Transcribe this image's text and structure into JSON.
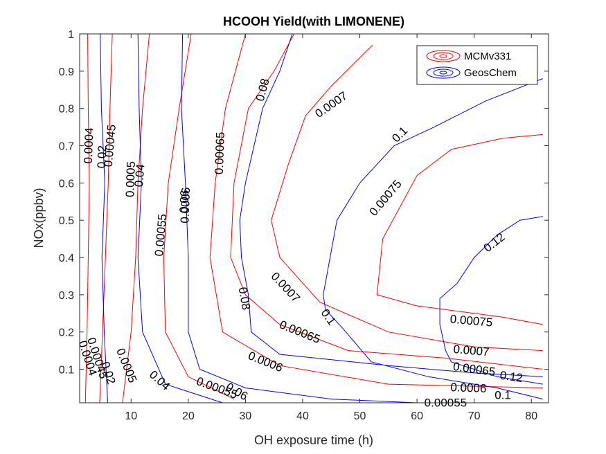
{
  "chart_data": {
    "type": "contour",
    "title": "HCOOH Yield(with LIMONENE)",
    "xlabel": "OH exposure time (h)",
    "ylabel": "NOx(ppbv)",
    "xlim": [
      1,
      83
    ],
    "ylim": [
      0.01,
      1.0
    ],
    "xticks": [
      10,
      20,
      30,
      40,
      50,
      60,
      70,
      80
    ],
    "yticks": [
      0.1,
      0.2,
      0.3,
      0.4,
      0.5,
      0.6,
      0.7,
      0.8,
      0.9,
      1
    ],
    "ytick_labels": [
      "0.1",
      "0.2",
      "0.3",
      "0.4",
      "0.5",
      "0.6",
      "0.7",
      "0.8",
      "0.9",
      "1"
    ],
    "xtick_labels": [
      "10",
      "20",
      "30",
      "40",
      "50",
      "60",
      "70",
      "80"
    ],
    "grid": false,
    "legend": {
      "location": "top-right",
      "entries": [
        {
          "name": "MCMv331",
          "color": "#ff0000"
        },
        {
          "name": "GeosChem",
          "color": "#0000ff"
        }
      ]
    },
    "series": [
      {
        "name": "MCMv331",
        "color": "#ff0000",
        "contours": [
          {
            "level": "0.0004",
            "points": [
              [
                2.4,
                1.0
              ],
              [
                2.5,
                0.8
              ],
              [
                2.7,
                0.6
              ],
              [
                2.5,
                0.4
              ],
              [
                2.3,
                0.2
              ],
              [
                2.0,
                0.01
              ]
            ]
          },
          {
            "level": "0.00045",
            "points": [
              [
                6.7,
                1.0
              ],
              [
                6.3,
                0.8
              ],
              [
                6.0,
                0.6
              ],
              [
                5.5,
                0.4
              ],
              [
                5.0,
                0.2
              ],
              [
                4.5,
                0.01
              ]
            ]
          },
          {
            "level": "0.0005",
            "points": [
              [
                13.2,
                1.0
              ],
              [
                12.0,
                0.8
              ],
              [
                11.2,
                0.6
              ],
              [
                10.8,
                0.4
              ],
              [
                10.0,
                0.2
              ],
              [
                8.5,
                0.01
              ]
            ]
          },
          {
            "level": "0.00055",
            "points": [
              [
                20.5,
                1.0
              ],
              [
                18.4,
                0.8
              ],
              [
                16.5,
                0.6
              ],
              [
                15.7,
                0.4
              ],
              [
                16.0,
                0.2
              ],
              [
                20.0,
                0.08
              ],
              [
                28.0,
                0.02
              ]
            ]
          },
          {
            "level": "0.0006",
            "points": [
              [
                30.0,
                1.0
              ],
              [
                26.5,
                0.8
              ],
              [
                24.7,
                0.6
              ],
              [
                23.8,
                0.4
              ],
              [
                26.0,
                0.2
              ],
              [
                36.0,
                0.11
              ],
              [
                55.0,
                0.06
              ],
              [
                82.0,
                0.05
              ]
            ]
          },
          {
            "level": "0.00065",
            "points": [
              [
                38.5,
                1.0
              ],
              [
                35.0,
                0.9
              ],
              [
                30.5,
                0.8
              ],
              [
                28.0,
                0.6
              ],
              [
                27.4,
                0.4
              ],
              [
                30.0,
                0.3
              ],
              [
                36.0,
                0.22
              ],
              [
                48.0,
                0.15
              ],
              [
                65.0,
                0.13
              ],
              [
                82.0,
                0.1
              ]
            ]
          },
          {
            "level": "0.0007",
            "points": [
              [
                52.2,
                0.97
              ],
              [
                45.0,
                0.86
              ],
              [
                40.5,
                0.78
              ],
              [
                37.5,
                0.65
              ],
              [
                34.5,
                0.5
              ],
              [
                36.0,
                0.4
              ],
              [
                43.0,
                0.28
              ],
              [
                55.0,
                0.2
              ],
              [
                70.0,
                0.16
              ],
              [
                82.0,
                0.15
              ]
            ]
          },
          {
            "level": "0.00075",
            "points": [
              [
                82.0,
                0.73
              ],
              [
                75.0,
                0.72
              ],
              [
                66.0,
                0.69
              ],
              [
                60.0,
                0.62
              ],
              [
                54.0,
                0.45
              ],
              [
                53.0,
                0.3
              ],
              [
                60.0,
                0.27
              ],
              [
                75.0,
                0.24
              ],
              [
                82.0,
                0.22
              ]
            ]
          }
        ]
      },
      {
        "name": "GeosChem",
        "color": "#0000ff",
        "contours": [
          {
            "level": "0.02",
            "points": [
              [
                4.6,
                1.0
              ],
              [
                4.8,
                0.8
              ],
              [
                5.4,
                0.6
              ],
              [
                4.9,
                0.4
              ],
              [
                5.3,
                0.2
              ],
              [
                5.9,
                0.01
              ]
            ]
          },
          {
            "level": "0.04",
            "points": [
              [
                11.2,
                1.0
              ],
              [
                11.4,
                0.8
              ],
              [
                11.8,
                0.6
              ],
              [
                11.2,
                0.4
              ],
              [
                12.0,
                0.2
              ],
              [
                16.0,
                0.06
              ],
              [
                26.0,
                0.01
              ]
            ]
          },
          {
            "level": "0.06",
            "points": [
              [
                19.0,
                1.0
              ],
              [
                18.8,
                0.8
              ],
              [
                19.5,
                0.6
              ],
              [
                20.0,
                0.4
              ],
              [
                20.0,
                0.2
              ],
              [
                22.0,
                0.1
              ],
              [
                30.0,
                0.05
              ],
              [
                45.0,
                0.02
              ],
              [
                60.0,
                0.01
              ]
            ]
          },
          {
            "level": "0.08",
            "points": [
              [
                38.2,
                1.0
              ],
              [
                36.0,
                0.9
              ],
              [
                33.0,
                0.8
              ],
              [
                30.0,
                0.6
              ],
              [
                29.0,
                0.5
              ],
              [
                29.3,
                0.4
              ],
              [
                30.5,
                0.3
              ],
              [
                31.0,
                0.2
              ],
              [
                36.0,
                0.14
              ],
              [
                55.0,
                0.11
              ],
              [
                70.0,
                0.09
              ],
              [
                82.0,
                0.08
              ]
            ]
          },
          {
            "level": "0.1",
            "points": [
              [
                82.0,
                0.88
              ],
              [
                72.0,
                0.82
              ],
              [
                63.0,
                0.75
              ],
              [
                56.0,
                0.7
              ],
              [
                50.0,
                0.6
              ],
              [
                46.0,
                0.5
              ],
              [
                43.6,
                0.3
              ],
              [
                44.0,
                0.26
              ],
              [
                47.0,
                0.21
              ],
              [
                52.0,
                0.12
              ],
              [
                62.0,
                0.08
              ],
              [
                74.0,
                0.05
              ],
              [
                82.0,
                0.02
              ]
            ]
          },
          {
            "level": "0.12",
            "points": [
              [
                82.0,
                0.51
              ],
              [
                78.0,
                0.5
              ],
              [
                74.0,
                0.46
              ],
              [
                70.0,
                0.4
              ],
              [
                67.0,
                0.33
              ],
              [
                64.0,
                0.29
              ],
              [
                64.0,
                0.22
              ],
              [
                65.0,
                0.15
              ],
              [
                66.0,
                0.12
              ],
              [
                74.0,
                0.08
              ],
              [
                82.0,
                0.06
              ]
            ]
          }
        ]
      }
    ],
    "contour_labels": [
      {
        "series": "MCMv331",
        "text": "0.0004",
        "at": [
          2.6,
          0.7
        ],
        "angle": -88
      },
      {
        "series": "MCMv331",
        "text": "0.0004",
        "at": [
          2.4,
          0.13
        ],
        "angle": 72
      },
      {
        "series": "MCMv331",
        "text": "0.00045",
        "at": [
          6.3,
          0.7
        ],
        "angle": -85
      },
      {
        "series": "MCMv331",
        "text": "0.00045",
        "at": [
          4.1,
          0.13
        ],
        "angle": 72
      },
      {
        "series": "MCMv331",
        "text": "0.0005",
        "at": [
          9.9,
          0.61
        ],
        "angle": -88
      },
      {
        "series": "MCMv331",
        "text": "0.0005",
        "at": [
          9.2,
          0.11
        ],
        "angle": 68
      },
      {
        "series": "MCMv331",
        "text": "0.00055",
        "at": [
          15.2,
          0.46
        ],
        "angle": -85
      },
      {
        "series": "MCMv331",
        "text": "0.00055",
        "at": [
          25.0,
          0.05
        ],
        "angle": 20
      },
      {
        "series": "MCMv331",
        "text": "0.00055",
        "at": [
          65.0,
          0.01
        ],
        "angle": 0
      },
      {
        "series": "MCMv331",
        "text": "0.0006",
        "at": [
          19.5,
          0.54
        ],
        "angle": -88
      },
      {
        "series": "MCMv331",
        "text": "0.0006",
        "at": [
          33.5,
          0.12
        ],
        "angle": 22
      },
      {
        "series": "MCMv331",
        "text": "0.0006",
        "at": [
          69.0,
          0.05
        ],
        "angle": 2
      },
      {
        "series": "MCMv331",
        "text": "0.00065",
        "at": [
          25.5,
          0.68
        ],
        "angle": -88
      },
      {
        "series": "MCMv331",
        "text": "0.00065",
        "at": [
          39.5,
          0.2
        ],
        "angle": 22
      },
      {
        "series": "MCMv331",
        "text": "0.00065",
        "at": [
          70.0,
          0.1
        ],
        "angle": 8
      },
      {
        "series": "MCMv331",
        "text": "0.0007",
        "at": [
          45.0,
          0.81
        ],
        "angle": -35
      },
      {
        "series": "MCMv331",
        "text": "0.0007",
        "at": [
          37.0,
          0.32
        ],
        "angle": 47
      },
      {
        "series": "MCMv331",
        "text": "0.0007",
        "at": [
          69.5,
          0.15
        ],
        "angle": 5
      },
      {
        "series": "MCMv331",
        "text": "0.00075",
        "at": [
          54.5,
          0.56
        ],
        "angle": -50
      },
      {
        "series": "MCMv331",
        "text": "0.00075",
        "at": [
          69.5,
          0.23
        ],
        "angle": 5
      },
      {
        "series": "GeosChem",
        "text": "0.02",
        "at": [
          4.9,
          0.67
        ],
        "angle": -88
      },
      {
        "series": "GeosChem",
        "text": "0.02",
        "at": [
          6.0,
          0.09
        ],
        "angle": 72
      },
      {
        "series": "GeosChem",
        "text": "0.04",
        "at": [
          11.5,
          0.62
        ],
        "angle": -85
      },
      {
        "series": "GeosChem",
        "text": "0.04",
        "at": [
          15.0,
          0.07
        ],
        "angle": 42
      },
      {
        "series": "GeosChem",
        "text": "0.06",
        "at": [
          19.3,
          0.55
        ],
        "angle": -88
      },
      {
        "series": "GeosChem",
        "text": "0.06",
        "at": [
          28.5,
          0.04
        ],
        "angle": 30
      },
      {
        "series": "GeosChem",
        "text": "0.08",
        "at": [
          33.0,
          0.85
        ],
        "angle": -75
      },
      {
        "series": "GeosChem",
        "text": "0.08",
        "at": [
          29.8,
          0.29
        ],
        "angle": 80
      },
      {
        "series": "GeosChem",
        "text": "0.1",
        "at": [
          57.0,
          0.73
        ],
        "angle": -45
      },
      {
        "series": "GeosChem",
        "text": "0.1",
        "at": [
          44.5,
          0.24
        ],
        "angle": 55
      },
      {
        "series": "GeosChem",
        "text": "0.1",
        "at": [
          75.0,
          0.03
        ],
        "angle": 0
      },
      {
        "series": "GeosChem",
        "text": "0.12",
        "at": [
          73.5,
          0.44
        ],
        "angle": -38
      },
      {
        "series": "GeosChem",
        "text": "0.12",
        "at": [
          76.5,
          0.08
        ],
        "angle": 8
      }
    ]
  }
}
